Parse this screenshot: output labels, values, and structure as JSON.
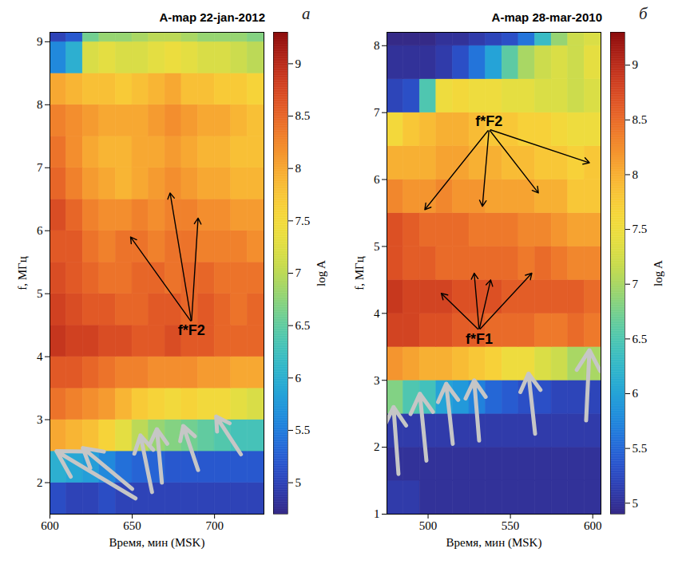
{
  "chart_data": [
    {
      "type": "heatmap",
      "title": "A-map 22-jan-2012",
      "panel": "а",
      "xlabel": "Время, мин (MSK)",
      "ylabel": "f, МГц",
      "xlim": [
        600,
        730
      ],
      "xticks": [
        600,
        650,
        700
      ],
      "ylim": [
        1.5,
        9.15
      ],
      "yticks": [
        2,
        3,
        4,
        5,
        6,
        7,
        8,
        9
      ],
      "x_bins": [
        600,
        610,
        620,
        630,
        640,
        650,
        660,
        670,
        680,
        690,
        700,
        710,
        720,
        730
      ],
      "y_bins": [
        1.5,
        2,
        2.5,
        3,
        3.5,
        4,
        4.5,
        5,
        5.5,
        6,
        6.5,
        7,
        7.5,
        8,
        8.5,
        9,
        9.15
      ],
      "values": [
        [
          5.1,
          5.0,
          5.0,
          5.1,
          5.0,
          5.0,
          5.0,
          5.0,
          5.0,
          5.0,
          5.0,
          5.0,
          5.0
        ],
        [
          6.0,
          5.9,
          5.8,
          5.6,
          5.4,
          5.3,
          5.3,
          5.2,
          5.2,
          5.2,
          5.2,
          5.2,
          5.2
        ],
        [
          8.0,
          7.9,
          7.8,
          7.6,
          7.3,
          7.0,
          6.8,
          6.7,
          6.6,
          6.5,
          6.4,
          6.3,
          6.3
        ],
        [
          8.4,
          8.3,
          8.2,
          8.1,
          7.9,
          7.7,
          7.6,
          7.5,
          7.6,
          7.5,
          7.5,
          7.3,
          7.2
        ],
        [
          8.6,
          8.6,
          8.5,
          8.4,
          8.3,
          8.3,
          8.2,
          8.2,
          8.2,
          8.1,
          8.1,
          8.0,
          8.0
        ],
        [
          8.9,
          8.8,
          8.8,
          8.7,
          8.7,
          8.6,
          8.6,
          8.7,
          8.6,
          8.6,
          8.5,
          8.5,
          8.5
        ],
        [
          8.8,
          8.7,
          8.6,
          8.6,
          8.5,
          8.5,
          8.6,
          8.6,
          8.5,
          8.6,
          8.5,
          8.4,
          8.5
        ],
        [
          8.7,
          8.6,
          8.5,
          8.4,
          8.4,
          8.5,
          8.5,
          8.4,
          8.5,
          8.5,
          8.4,
          8.4,
          8.4
        ],
        [
          8.6,
          8.6,
          8.4,
          8.3,
          8.4,
          8.4,
          8.3,
          8.4,
          8.4,
          8.3,
          8.3,
          8.3,
          8.2
        ],
        [
          8.7,
          8.5,
          8.3,
          8.2,
          8.2,
          8.3,
          8.2,
          8.3,
          8.3,
          8.2,
          8.2,
          8.1,
          8.1
        ],
        [
          8.5,
          8.3,
          8.1,
          8.0,
          7.9,
          8.0,
          8.1,
          8.2,
          8.1,
          8.0,
          8.0,
          7.9,
          7.9
        ],
        [
          8.4,
          8.2,
          8.0,
          7.9,
          7.9,
          8.0,
          8.0,
          8.1,
          8.0,
          7.9,
          7.9,
          7.8,
          7.8
        ],
        [
          8.3,
          8.2,
          8.1,
          8.0,
          8.0,
          8.0,
          8.1,
          8.2,
          8.1,
          8.0,
          8.0,
          7.9,
          7.8
        ],
        [
          8.0,
          7.9,
          7.8,
          7.8,
          7.7,
          7.8,
          7.9,
          8.0,
          7.8,
          7.8,
          7.7,
          7.7,
          7.6
        ],
        [
          5.6,
          6.0,
          7.2,
          7.3,
          7.2,
          7.2,
          7.3,
          7.4,
          7.3,
          7.2,
          7.2,
          7.1,
          7.0
        ],
        [
          5.0,
          5.2,
          6.6,
          6.8,
          6.8,
          6.9,
          7.0,
          7.0,
          6.9,
          6.8,
          6.8,
          6.8,
          6.7
        ]
      ],
      "colorbar": {
        "label": "log A",
        "range": [
          4.7,
          9.3
        ],
        "ticks": [
          5,
          5.5,
          6,
          6.5,
          7,
          7.5,
          8,
          8.5,
          9
        ]
      },
      "annotations": [
        {
          "text": "f*F2",
          "x": 686,
          "y": 4.55,
          "arrows": [
            [
              649,
              5.9
            ],
            [
              673,
              6.6
            ],
            [
              690,
              6.2
            ]
          ]
        }
      ],
      "arrows": [
        [
          652,
          1.75,
          604,
          2.5
        ],
        [
          650,
          1.9,
          620,
          2.55
        ],
        [
          662,
          1.85,
          655,
          2.75
        ],
        [
          668,
          2.0,
          665,
          2.85
        ],
        [
          690,
          2.2,
          681,
          2.9
        ],
        [
          716,
          2.45,
          701,
          3.05
        ]
      ]
    },
    {
      "type": "heatmap",
      "title": "A-map 28-mar-2010",
      "panel": "б",
      "xlabel": "Время, мин (MSK)",
      "ylabel": "f, МГц",
      "xlim": [
        475,
        605
      ],
      "xticks": [
        500,
        550,
        600
      ],
      "ylim": [
        1,
        8.2
      ],
      "yticks": [
        1,
        2,
        3,
        4,
        5,
        6,
        7,
        8
      ],
      "x_bins": [
        475,
        485,
        495,
        505,
        515,
        525,
        535,
        545,
        555,
        565,
        575,
        585,
        595,
        605
      ],
      "y_bins": [
        1,
        1.5,
        2,
        2.5,
        3,
        3.5,
        4,
        4.5,
        5,
        5.5,
        6,
        6.5,
        7,
        7.5,
        8,
        8.2
      ],
      "values": [
        [
          5.1,
          5.1,
          5.0,
          5.0,
          5.0,
          5.0,
          5.0,
          5.0,
          5.0,
          5.0,
          5.0,
          5.0,
          5.0
        ],
        [
          5.0,
          5.0,
          5.0,
          5.0,
          5.0,
          5.0,
          5.0,
          5.0,
          5.0,
          5.0,
          5.0,
          5.0,
          5.0
        ],
        [
          5.1,
          5.1,
          5.1,
          5.1,
          5.1,
          5.1,
          5.1,
          5.1,
          5.1,
          5.1,
          5.1,
          5.1,
          5.1
        ],
        [
          6.8,
          6.5,
          6.4,
          6.0,
          5.9,
          5.7,
          5.5,
          5.4,
          5.3,
          5.3,
          5.2,
          5.2,
          5.2
        ],
        [
          8.2,
          8.1,
          8.0,
          8.0,
          7.9,
          7.8,
          7.7,
          7.5,
          7.5,
          7.3,
          7.2,
          7.0,
          7.0
        ],
        [
          8.8,
          8.8,
          8.7,
          8.7,
          8.6,
          8.6,
          8.5,
          8.5,
          8.5,
          8.4,
          8.4,
          8.5,
          8.4
        ],
        [
          8.9,
          8.8,
          8.8,
          8.8,
          8.7,
          8.7,
          8.7,
          8.6,
          8.6,
          8.6,
          8.6,
          8.6,
          8.5
        ],
        [
          8.7,
          8.6,
          8.6,
          8.5,
          8.5,
          8.5,
          8.5,
          8.5,
          8.4,
          8.5,
          8.4,
          8.3,
          8.3
        ],
        [
          8.7,
          8.6,
          8.5,
          8.5,
          8.5,
          8.4,
          8.4,
          8.4,
          8.3,
          8.3,
          8.2,
          8.1,
          8.1
        ],
        [
          8.3,
          8.2,
          8.2,
          8.3,
          8.2,
          8.2,
          8.1,
          8.1,
          8.1,
          8.0,
          8.0,
          7.8,
          7.8
        ],
        [
          8.0,
          8.0,
          8.0,
          8.1,
          8.1,
          8.0,
          8.0,
          7.9,
          7.9,
          7.8,
          7.8,
          7.7,
          7.8
        ],
        [
          7.6,
          7.8,
          7.9,
          8.0,
          8.0,
          7.9,
          7.8,
          7.8,
          7.7,
          7.7,
          7.6,
          7.5,
          7.5
        ],
        [
          5.2,
          5.3,
          6.5,
          7.5,
          7.6,
          7.5,
          7.5,
          7.4,
          7.4,
          7.3,
          7.3,
          7.2,
          7.3
        ],
        [
          5.0,
          5.0,
          5.0,
          5.1,
          5.3,
          5.6,
          6.0,
          6.6,
          7.0,
          7.2,
          7.3,
          7.2,
          7.4
        ],
        [
          4.9,
          4.9,
          4.9,
          5.0,
          5.0,
          5.1,
          5.2,
          5.3,
          5.6,
          6.3,
          6.9,
          7.2,
          7.3
        ]
      ],
      "colorbar": {
        "label": "log A",
        "range": [
          4.9,
          9.3
        ],
        "ticks": [
          5,
          5.5,
          6,
          6.5,
          7,
          7.5,
          8,
          8.5,
          9
        ]
      },
      "annotations": [
        {
          "text": "f*F2",
          "x": 537,
          "y": 6.75,
          "arrows": [
            [
              498,
              5.55
            ],
            [
              533,
              5.6
            ],
            [
              567,
              5.8
            ],
            [
              598,
              6.25
            ]
          ]
        },
        {
          "text": "f*F1",
          "x": 531,
          "y": 3.75,
          "arrows": [
            [
              508,
              4.3
            ],
            [
              528,
              4.6
            ],
            [
              538,
              4.5
            ],
            [
              563,
              4.6
            ]
          ]
        }
      ],
      "arrows": [
        [
          482,
          1.6,
          479,
          2.6
        ],
        [
          499,
          1.8,
          495,
          2.8
        ],
        [
          515,
          2.05,
          511,
          2.95
        ],
        [
          531,
          2.1,
          528,
          3.0
        ],
        [
          565,
          2.2,
          561,
          3.1
        ],
        [
          596,
          2.4,
          598,
          3.45
        ]
      ]
    }
  ]
}
